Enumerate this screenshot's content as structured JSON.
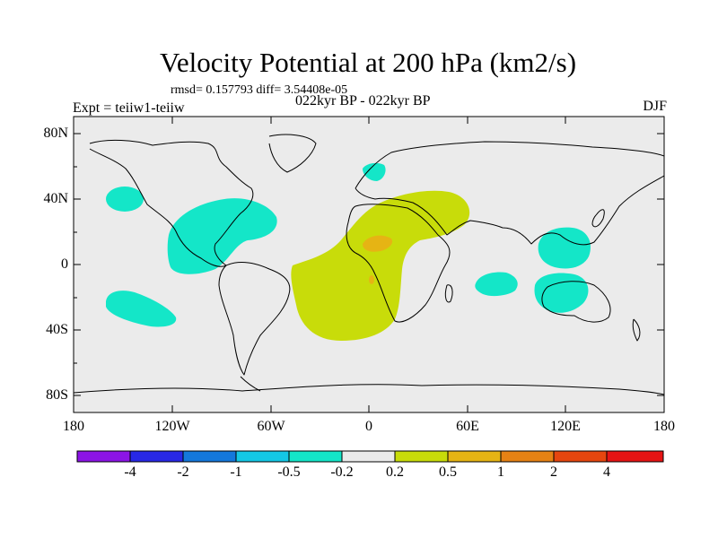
{
  "header": {
    "title": "Velocity Potential at 200 hPa (km2/s)",
    "stats": "rmsd= 0.157793 diff= 3.54408e-05",
    "period": "022kyr BP - 022kyr BP",
    "experiment": "Expt = teiiw1-teiiw",
    "season": "DJF"
  },
  "map": {
    "projection": "cylindrical equidistant",
    "lon_range": [
      -180,
      180
    ],
    "lat_range": [
      -90,
      90
    ],
    "lat_tick_labels": [
      "80N",
      "40N",
      "0",
      "40S",
      "80S"
    ],
    "lon_tick_labels": [
      "180",
      "120W",
      "60W",
      "0",
      "60E",
      "120E",
      "180"
    ],
    "background_color": "#ebebeb",
    "coastline_color": "#000000"
  },
  "colorbar": {
    "labels": [
      "-4",
      "-2",
      "-1",
      "-0.5",
      "-0.2",
      "0.2",
      "0.5",
      "1",
      "2",
      "4"
    ],
    "colors": [
      "#8c14e6",
      "#2828e6",
      "#1478dc",
      "#14c8e6",
      "#14e6c8",
      "#ebebeb",
      "#c8dc0a",
      "#e6b414",
      "#e68214",
      "#e6460f",
      "#e61414"
    ]
  },
  "chart_data": {
    "type": "heatmap",
    "title": "Velocity Potential at 200 hPa (km2/s)",
    "levels": [
      -4,
      -2,
      -1,
      -0.5,
      -0.2,
      0.2,
      0.5,
      1,
      2,
      4
    ],
    "regions": [
      {
        "level_bin": "-0.5 to -0.2",
        "area": "North Pacific",
        "lon": -158,
        "lat": 42
      },
      {
        "level_bin": "-0.5 to -0.2",
        "area": "Central America / Caribbean",
        "lon": -100,
        "lat": 20
      },
      {
        "level_bin": "-0.5 to -0.2",
        "area": "Scandinavia",
        "lon": 10,
        "lat": 60
      },
      {
        "level_bin": "-0.5 to -0.2",
        "area": "South Pacific",
        "lon": -150,
        "lat": -25
      },
      {
        "level_bin": "-0.5 to -0.2",
        "area": "Indian Ocean",
        "lon": 78,
        "lat": -10
      },
      {
        "level_bin": "-0.5 to -0.2",
        "area": "Maritime Continent / W Pacific",
        "lon": 120,
        "lat": 5
      },
      {
        "level_bin": "-0.5 to -0.2",
        "area": "Indonesia / N Australia",
        "lon": 120,
        "lat": -20
      },
      {
        "level_bin": "0.2 to 0.5",
        "area": "Atlantic / Africa",
        "lon": 0,
        "lat": -5
      },
      {
        "level_bin": "0.5 to 1",
        "area": "Gulf of Guinea",
        "lon": 5,
        "lat": 15
      },
      {
        "level_bin": "0.5 to 1",
        "area": "Equatorial Atlantic",
        "lon": 0,
        "lat": -10
      }
    ]
  }
}
